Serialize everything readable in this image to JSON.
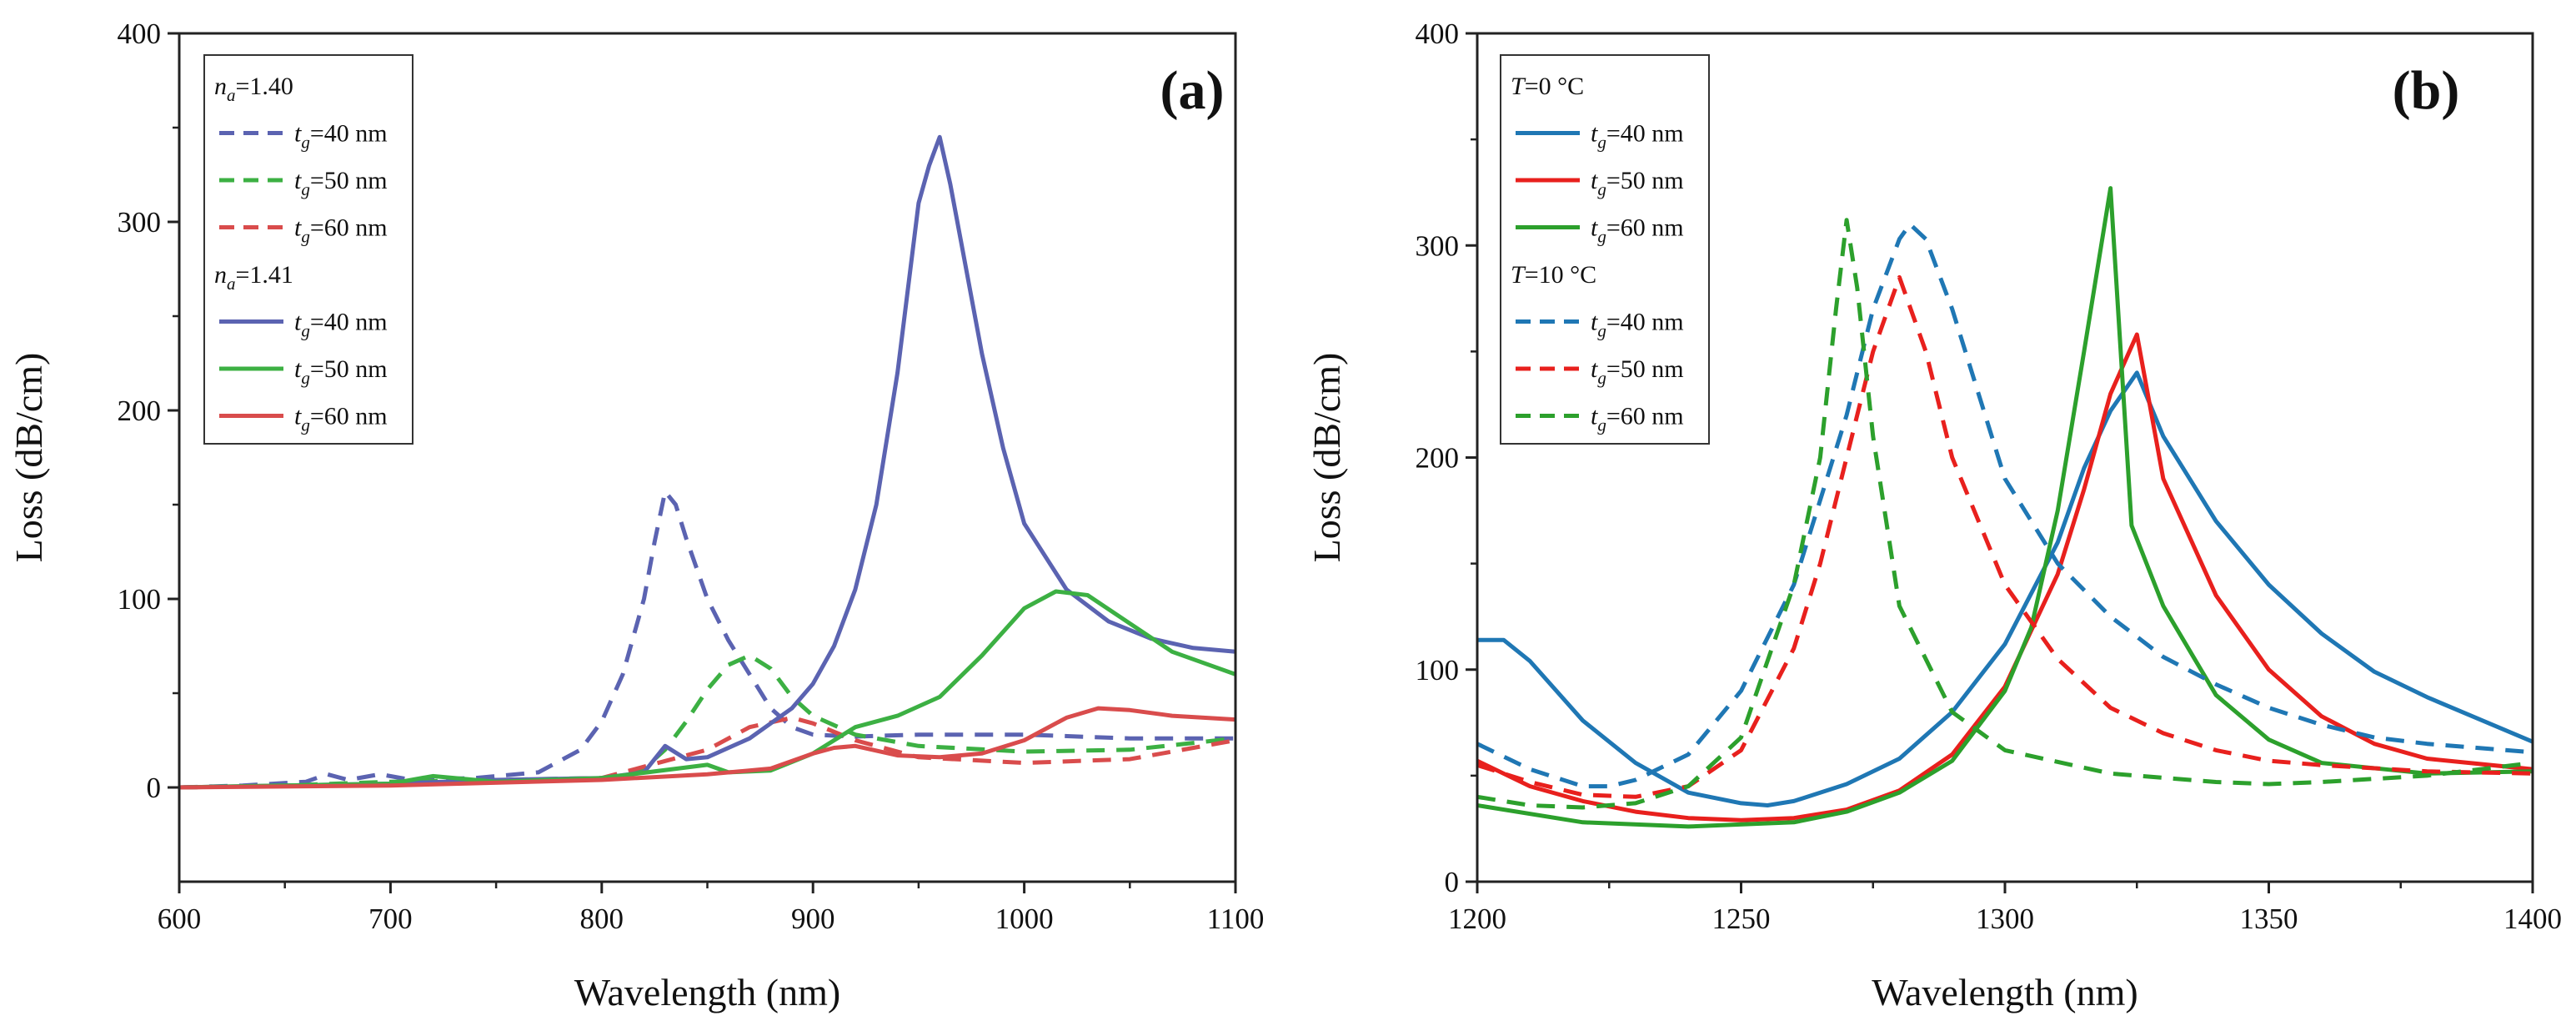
{
  "figure": {
    "panels": [
      "a",
      "b"
    ]
  },
  "chart_data": [
    {
      "type": "line",
      "panel_label": "(a)",
      "title": "",
      "xlabel": "Wavelength (nm)",
      "ylabel": "Loss (dB/cm)",
      "xlim": [
        600,
        1100
      ],
      "ylim": [
        -50,
        400
      ],
      "xticks": [
        600,
        700,
        800,
        900,
        1000,
        1100
      ],
      "xtick_labels": [
        "600",
        "700",
        "800",
        "900",
        "1000",
        "1100"
      ],
      "yticks": [
        0,
        100,
        200,
        300,
        400
      ],
      "ytick_labels": [
        "0",
        "100",
        "200",
        "300",
        "400"
      ],
      "grid": false,
      "legend_position": "top-left",
      "legend_groups": [
        {
          "var": "n",
          "sub": "a",
          "eq": "=1.40"
        },
        {
          "var": "n",
          "sub": "a",
          "eq": "=1.41"
        }
      ],
      "series": [
        {
          "name": "n_a=1.40, t_g=40 nm",
          "var": "t",
          "sub": "g",
          "eq": "=40 nm",
          "color": "#5b63b1",
          "dash": true,
          "x": [
            600,
            630,
            660,
            670,
            680,
            695,
            710,
            740,
            770,
            790,
            800,
            810,
            820,
            825,
            830,
            835,
            840,
            850,
            860,
            870,
            880,
            890,
            900,
            920,
            950,
            1000,
            1050,
            1100
          ],
          "y": [
            0,
            1,
            3,
            7,
            4,
            7,
            4,
            5,
            8,
            20,
            35,
            60,
            100,
            130,
            157,
            150,
            132,
            100,
            78,
            60,
            42,
            32,
            28,
            27,
            28,
            28,
            26,
            26
          ]
        },
        {
          "name": "n_a=1.40, t_g=50 nm",
          "var": "t",
          "sub": "g",
          "eq": "=50 nm",
          "color": "#3cb043",
          "dash": true,
          "x": [
            600,
            650,
            700,
            750,
            800,
            820,
            830,
            840,
            850,
            860,
            870,
            880,
            890,
            900,
            920,
            950,
            1000,
            1050,
            1100
          ],
          "y": [
            0,
            1,
            3,
            4,
            5,
            10,
            20,
            35,
            52,
            65,
            70,
            63,
            48,
            38,
            28,
            22,
            19,
            20,
            26
          ]
        },
        {
          "name": "n_a=1.40, t_g=60 nm",
          "var": "t",
          "sub": "g",
          "eq": "=60 nm",
          "color": "#d94c4c",
          "dash": true,
          "x": [
            600,
            700,
            800,
            850,
            870,
            890,
            900,
            920,
            950,
            1000,
            1050,
            1100
          ],
          "y": [
            0,
            2,
            5,
            20,
            32,
            37,
            34,
            25,
            16,
            13,
            15,
            25
          ]
        },
        {
          "name": "n_a=1.41, t_g=40 nm",
          "var": "t",
          "sub": "g",
          "eq": "=40 nm",
          "color": "#5b63b1",
          "dash": false,
          "x": [
            600,
            700,
            750,
            800,
            820,
            830,
            840,
            850,
            870,
            890,
            900,
            910,
            920,
            930,
            940,
            950,
            955,
            960,
            965,
            970,
            980,
            990,
            1000,
            1020,
            1040,
            1060,
            1080,
            1100
          ],
          "y": [
            0,
            2,
            4,
            5,
            8,
            22,
            15,
            16,
            26,
            42,
            55,
            75,
            105,
            150,
            220,
            310,
            330,
            345,
            320,
            290,
            230,
            180,
            140,
            105,
            88,
            79,
            74,
            72
          ]
        },
        {
          "name": "n_a=1.41, t_g=50 nm",
          "var": "t",
          "sub": "g",
          "eq": "=50 nm",
          "color": "#3cb043",
          "dash": false,
          "x": [
            600,
            700,
            720,
            750,
            800,
            850,
            860,
            880,
            900,
            920,
            940,
            960,
            980,
            1000,
            1015,
            1030,
            1050,
            1070,
            1100
          ],
          "y": [
            0,
            2,
            6,
            3,
            5,
            12,
            8,
            9,
            18,
            32,
            38,
            48,
            70,
            95,
            104,
            102,
            87,
            72,
            60
          ]
        },
        {
          "name": "n_a=1.41, t_g=60 nm",
          "var": "t",
          "sub": "g",
          "eq": "=60 nm",
          "color": "#d94c4c",
          "dash": false,
          "x": [
            600,
            700,
            800,
            850,
            880,
            900,
            910,
            920,
            940,
            960,
            980,
            1000,
            1020,
            1035,
            1050,
            1070,
            1100
          ],
          "y": [
            0,
            1,
            4,
            7,
            10,
            18,
            21,
            22,
            17,
            16,
            18,
            25,
            37,
            42,
            41,
            38,
            36
          ]
        }
      ]
    },
    {
      "type": "line",
      "panel_label": "(b)",
      "title": "",
      "xlabel": "Wavelength (nm)",
      "ylabel": "Loss (dB/cm)",
      "xlim": [
        1200,
        1400
      ],
      "ylim": [
        0,
        400
      ],
      "xticks": [
        1200,
        1250,
        1300,
        1350,
        1400
      ],
      "xtick_labels": [
        "1200",
        "1250",
        "1300",
        "1350",
        "1400"
      ],
      "yticks": [
        0,
        100,
        200,
        300,
        400
      ],
      "ytick_labels": [
        "0",
        "100",
        "200",
        "300",
        "400"
      ],
      "grid": false,
      "legend_position": "top-left",
      "legend_groups": [
        {
          "var": "T",
          "sub": "",
          "eq": "=0 °C"
        },
        {
          "var": "T",
          "sub": "",
          "eq": "=10 °C"
        }
      ],
      "series": [
        {
          "name": "T=0 °C, t_g=40 nm",
          "var": "t",
          "sub": "g",
          "eq": "=40 nm",
          "color": "#1f77b4",
          "dash": false,
          "x": [
            1200,
            1205,
            1210,
            1220,
            1230,
            1240,
            1250,
            1255,
            1260,
            1270,
            1280,
            1290,
            1300,
            1310,
            1315,
            1320,
            1325,
            1330,
            1340,
            1350,
            1360,
            1370,
            1380,
            1400
          ],
          "y": [
            114,
            114,
            104,
            76,
            56,
            42,
            37,
            36,
            38,
            46,
            58,
            80,
            112,
            160,
            195,
            222,
            240,
            210,
            170,
            140,
            117,
            99,
            87,
            66
          ]
        },
        {
          "name": "T=0 °C, t_g=50 nm",
          "var": "t",
          "sub": "g",
          "eq": "=50 nm",
          "color": "#e8201d",
          "dash": false,
          "x": [
            1200,
            1210,
            1220,
            1230,
            1240,
            1250,
            1260,
            1270,
            1280,
            1290,
            1300,
            1310,
            1315,
            1320,
            1325,
            1330,
            1340,
            1350,
            1360,
            1370,
            1380,
            1400
          ],
          "y": [
            57,
            45,
            38,
            33,
            30,
            29,
            30,
            34,
            43,
            60,
            92,
            145,
            185,
            230,
            258,
            190,
            135,
            100,
            78,
            65,
            58,
            53
          ]
        },
        {
          "name": "T=0 °C, t_g=60 nm",
          "var": "t",
          "sub": "g",
          "eq": "=60 nm",
          "color": "#2ca02c",
          "dash": false,
          "x": [
            1200,
            1220,
            1240,
            1260,
            1270,
            1280,
            1290,
            1300,
            1305,
            1310,
            1315,
            1320,
            1324,
            1330,
            1340,
            1350,
            1360,
            1380,
            1400
          ],
          "y": [
            36,
            28,
            26,
            28,
            33,
            42,
            57,
            90,
            120,
            175,
            250,
            327,
            168,
            130,
            88,
            67,
            56,
            51,
            52
          ]
        },
        {
          "name": "T=10 °C, t_g=40 nm",
          "var": "t",
          "sub": "g",
          "eq": "=40 nm",
          "color": "#1f77b4",
          "dash": true,
          "x": [
            1200,
            1210,
            1220,
            1225,
            1230,
            1240,
            1250,
            1260,
            1270,
            1275,
            1280,
            1282,
            1285,
            1290,
            1300,
            1310,
            1320,
            1330,
            1340,
            1350,
            1360,
            1370,
            1380,
            1400
          ],
          "y": [
            65,
            53,
            45,
            45,
            48,
            60,
            90,
            140,
            220,
            270,
            303,
            310,
            303,
            270,
            190,
            150,
            125,
            106,
            93,
            82,
            74,
            68,
            65,
            61
          ]
        },
        {
          "name": "T=10 °C, t_g=50 nm",
          "var": "t",
          "sub": "g",
          "eq": "=50 nm",
          "color": "#e8201d",
          "dash": true,
          "x": [
            1200,
            1210,
            1220,
            1230,
            1240,
            1250,
            1260,
            1265,
            1270,
            1275,
            1280,
            1285,
            1290,
            1300,
            1310,
            1320,
            1330,
            1340,
            1350,
            1360,
            1380,
            1400
          ],
          "y": [
            55,
            47,
            41,
            40,
            45,
            62,
            110,
            150,
            200,
            250,
            285,
            250,
            200,
            140,
            105,
            82,
            70,
            62,
            57,
            55,
            52,
            51
          ]
        },
        {
          "name": "T=10 °C, t_g=60 nm",
          "var": "t",
          "sub": "g",
          "eq": "=60 nm",
          "color": "#2ca02c",
          "dash": true,
          "x": [
            1200,
            1210,
            1220,
            1230,
            1240,
            1250,
            1260,
            1265,
            1268,
            1270,
            1272,
            1275,
            1280,
            1290,
            1300,
            1320,
            1340,
            1350,
            1360,
            1380,
            1400
          ],
          "y": [
            40,
            36,
            35,
            37,
            45,
            68,
            140,
            200,
            270,
            312,
            280,
            210,
            130,
            80,
            62,
            51,
            47,
            46,
            47,
            50,
            56
          ]
        }
      ]
    }
  ]
}
